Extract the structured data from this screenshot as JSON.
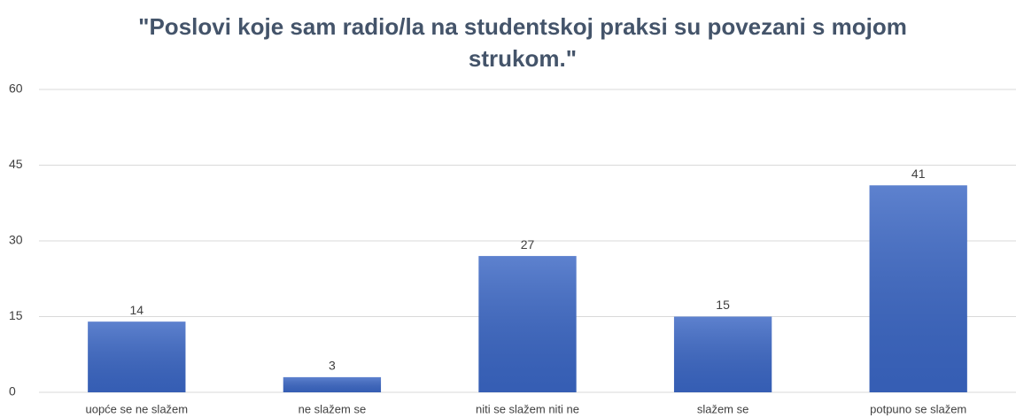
{
  "chart_data": {
    "type": "bar",
    "title": "\"Poslovi koje sam radio/la na studentskoj praksi su povezani s mojom strukom.\"",
    "categories": [
      "uopće se ne slažem",
      "ne slažem se",
      "niti se slažem niti ne",
      "slažem se",
      "potpuno se slažem"
    ],
    "values": [
      14,
      3,
      27,
      15,
      41
    ],
    "color": "#3a66c4",
    "ylim": [
      0,
      60
    ],
    "yticks": [
      0,
      15,
      30,
      45,
      60
    ],
    "grid": true
  }
}
